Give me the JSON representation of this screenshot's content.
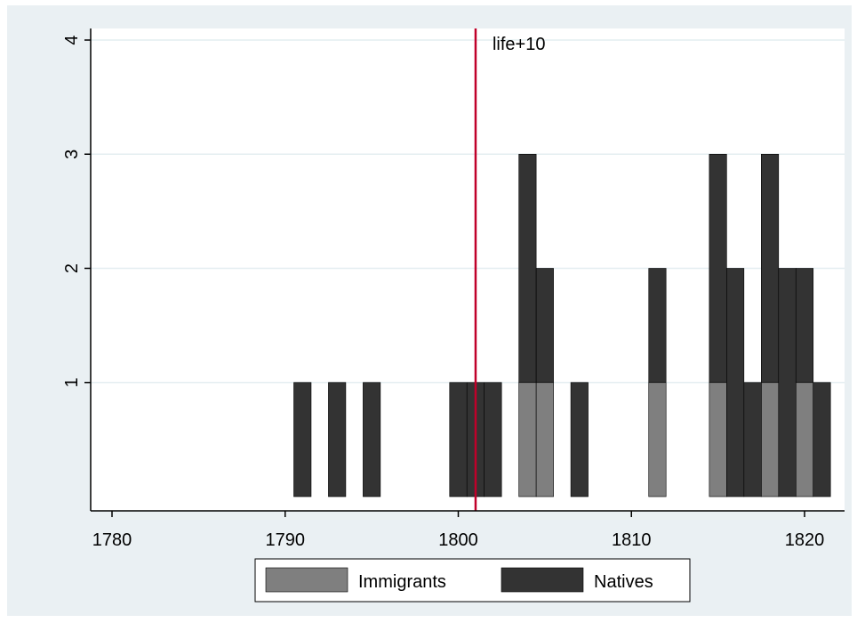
{
  "chart_data": {
    "type": "bar",
    "stacked": true,
    "x_axis": {
      "range": [
        1778,
        1823
      ],
      "ticks": [
        1780,
        1790,
        1800,
        1810,
        1820
      ]
    },
    "y_axis": {
      "range": [
        0,
        4.1
      ],
      "ticks": [
        1,
        2,
        3,
        4
      ]
    },
    "grid": true,
    "bar_width_years": 1,
    "reference_line": {
      "x": 1801,
      "label": "life+10",
      "color": "#c0002a"
    },
    "series": [
      {
        "name": "Immigrants",
        "color": "#7f7f7f",
        "x": [
          1804,
          1805,
          1811.5,
          1815,
          1818,
          1820
        ],
        "values": [
          1,
          1,
          1,
          1,
          1,
          1
        ]
      },
      {
        "name": "Natives",
        "color": "#333333",
        "x": [
          1791,
          1793,
          1795,
          1800,
          1801,
          1802,
          1804,
          1805,
          1807,
          1811.5,
          1815,
          1816,
          1817,
          1818,
          1819,
          1820,
          1821
        ],
        "values": [
          1,
          1,
          1,
          1,
          1,
          1,
          2,
          1,
          1,
          1,
          2,
          2,
          1,
          2,
          2,
          1,
          1
        ]
      }
    ],
    "legend": {
      "position": "bottom"
    }
  },
  "colors": {
    "outer_background": "#eaf0f3",
    "plot_background": "#ffffff",
    "grid": "#e4eef1"
  }
}
